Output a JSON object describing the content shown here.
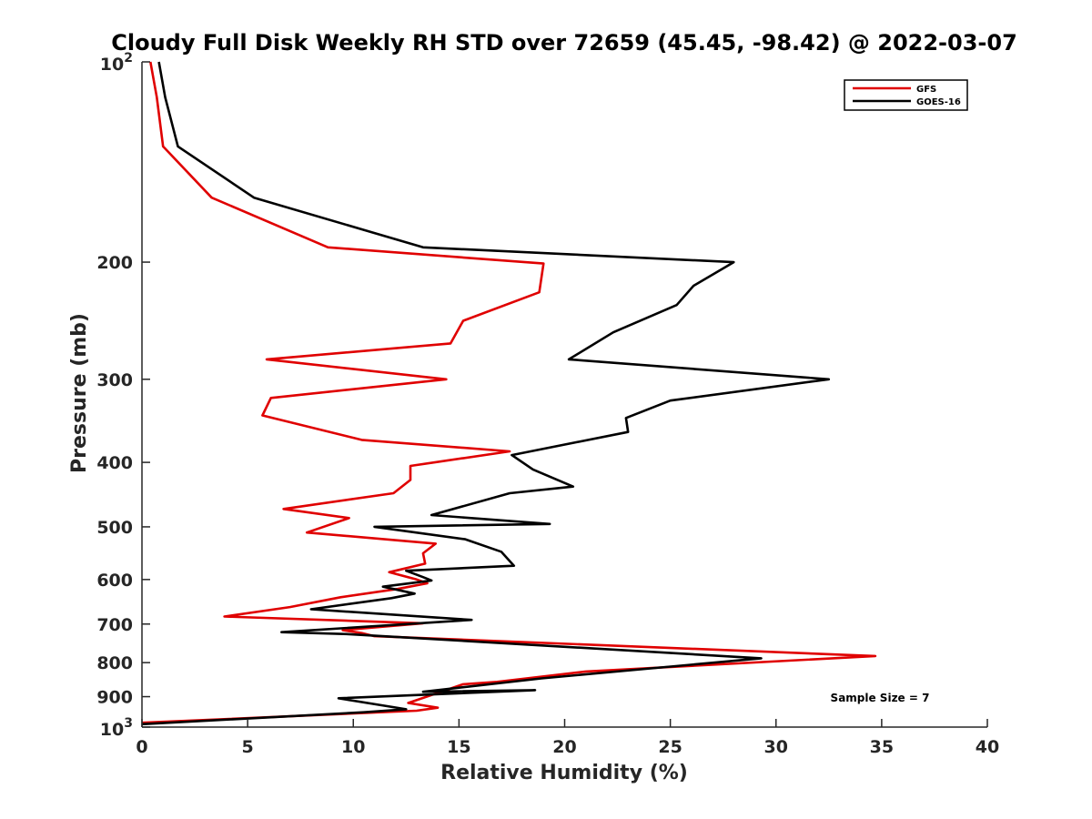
{
  "chart_data": {
    "type": "line",
    "title": "Cloudy Full Disk Weekly RH STD over 72659 (45.45, -98.42) @ 2022-03-07",
    "xlabel": "Relative Humidity (%)",
    "ylabel": "Pressure (mb)",
    "xlim": [
      0,
      40
    ],
    "ylim": [
      100,
      1000
    ],
    "y_scale": "log",
    "y_reversed": true,
    "x_ticks": [
      "0",
      "5",
      "10",
      "15",
      "20",
      "25",
      "30",
      "35",
      "40"
    ],
    "y_ticks": [
      {
        "value": 100,
        "base": "10",
        "exp": "2"
      },
      {
        "value": 200,
        "label": "200"
      },
      {
        "value": 300,
        "label": "300"
      },
      {
        "value": 400,
        "label": "400"
      },
      {
        "value": 500,
        "label": "500"
      },
      {
        "value": 600,
        "label": "600"
      },
      {
        "value": 700,
        "label": "700"
      },
      {
        "value": 800,
        "label": "800"
      },
      {
        "value": 900,
        "label": "900"
      },
      {
        "value": 1000,
        "base": "10",
        "exp": "3"
      }
    ],
    "legend_position": "top-right",
    "annotation": "Sample Size = 7",
    "grid": false,
    "series": [
      {
        "name": "GFS",
        "color": "#e00000",
        "x": [
          0.4,
          0.7,
          1.0,
          3.3,
          8.8,
          19.0,
          18.8,
          15.2,
          14.6,
          5.9,
          14.4,
          6.1,
          5.7,
          10.4,
          17.4,
          12.7,
          12.7,
          11.9,
          6.7,
          9.8,
          7.8,
          13.9,
          13.3,
          13.4,
          11.7,
          13.0,
          13.5,
          12.1,
          9.4,
          7.0,
          3.9,
          13.3,
          9.5,
          10.4,
          11.0,
          34.7,
          21.0,
          16.8,
          15.2,
          12.6,
          14.0,
          13.0,
          0.0
        ],
        "y": [
          100,
          113,
          134,
          160,
          190,
          201,
          222,
          245,
          265,
          280,
          300,
          320,
          340,
          370,
          385,
          405,
          425,
          445,
          470,
          485,
          510,
          530,
          548,
          568,
          585,
          600,
          608,
          620,
          638,
          660,
          682,
          698,
          715,
          722,
          730,
          782,
          825,
          855,
          862,
          920,
          935,
          945,
          985
        ]
      },
      {
        "name": "GOES-16",
        "color": "#000000",
        "x": [
          0.8,
          1.1,
          1.7,
          5.3,
          13.3,
          28.0,
          26.1,
          25.3,
          22.3,
          20.2,
          32.5,
          25.0,
          22.9,
          23.0,
          17.5,
          18.5,
          20.4,
          17.4,
          13.7,
          19.3,
          11.0,
          15.3,
          17.0,
          17.6,
          12.5,
          13.3,
          13.7,
          11.4,
          12.9,
          11.8,
          8.0,
          15.6,
          6.6,
          9.8,
          29.3,
          18.9,
          13.3,
          18.6,
          9.3,
          12.5,
          10.5,
          0.0
        ],
        "y": [
          100,
          113,
          134,
          160,
          190,
          200,
          217,
          232,
          255,
          280,
          300,
          323,
          343,
          360,
          390,
          410,
          435,
          445,
          480,
          495,
          500,
          522,
          545,
          572,
          582,
          595,
          602,
          615,
          630,
          640,
          665,
          690,
          720,
          725,
          788,
          845,
          885,
          880,
          905,
          940,
          950,
          990
        ]
      }
    ]
  }
}
